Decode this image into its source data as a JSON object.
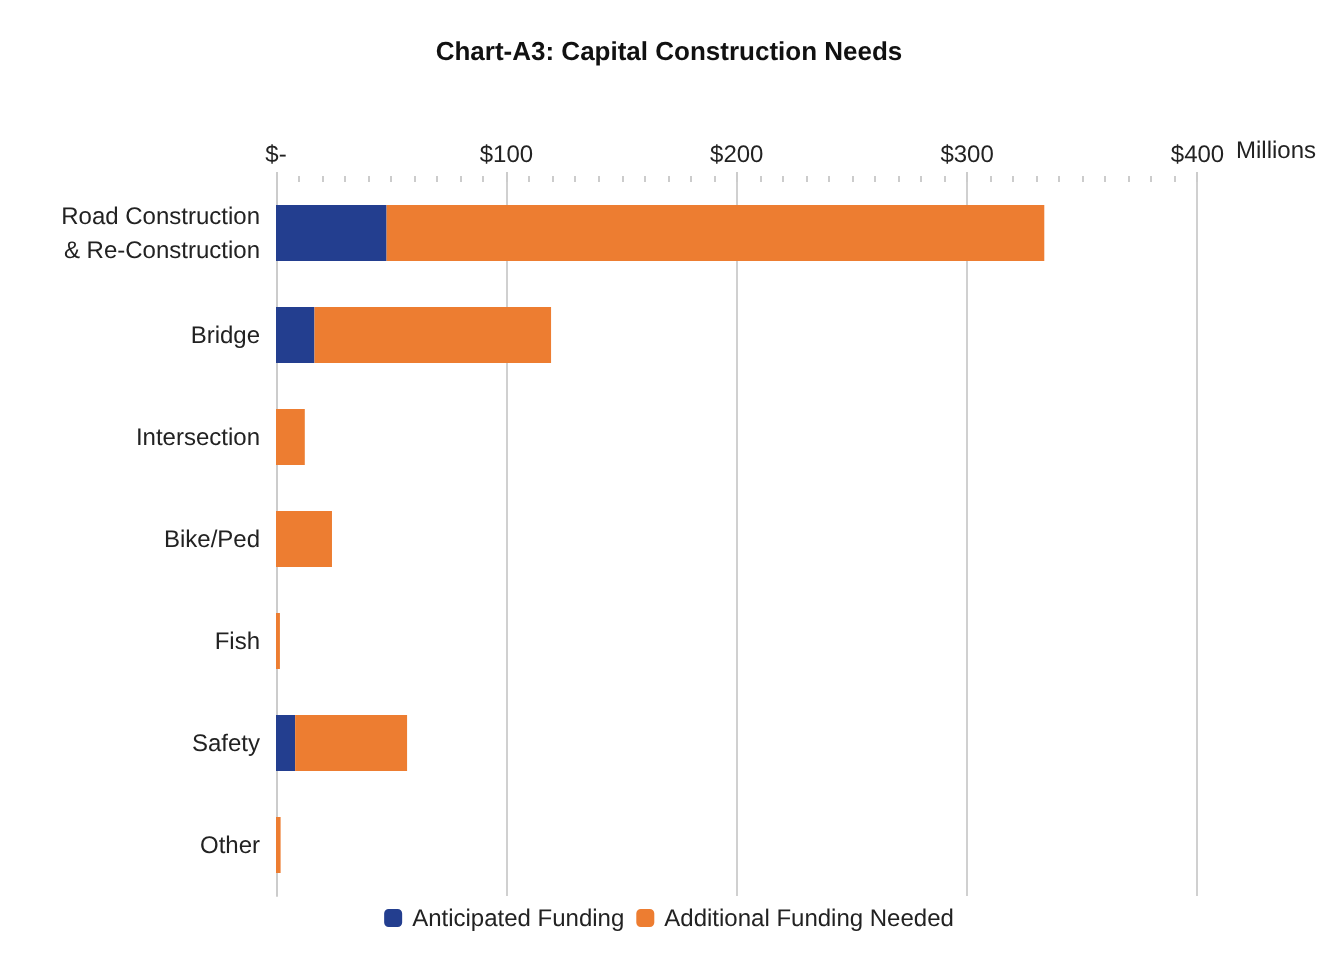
{
  "chart_data": {
    "type": "bar",
    "orientation": "horizontal",
    "stacked": true,
    "title": "Chart-A3: Capital Construction Needs",
    "xlabel": "Millions",
    "categories": [
      "Road Construction\n& Re-Construction",
      "Bridge",
      "Intersection",
      "Bike/Ped",
      "Fish",
      "Safety",
      "Other"
    ],
    "series": [
      {
        "name": "Anticipated Funding",
        "color": "#233e8f",
        "values": [
          48,
          16.7,
          0,
          0,
          0,
          8.3,
          0
        ]
      },
      {
        "name": "Additional Funding Needed",
        "color": "#ed7d31",
        "values": [
          285.5,
          102.7,
          12.5,
          24.3,
          1.7,
          48.6,
          2
        ]
      }
    ],
    "xlim": [
      0,
      400
    ],
    "xticks": [
      {
        "value": 0,
        "label": "$-"
      },
      {
        "value": 100,
        "label": "$100"
      },
      {
        "value": 200,
        "label": "$200"
      },
      {
        "value": 300,
        "label": "$300"
      },
      {
        "value": 400,
        "label": "$400"
      }
    ],
    "grid": "x",
    "legend": "bottom"
  }
}
